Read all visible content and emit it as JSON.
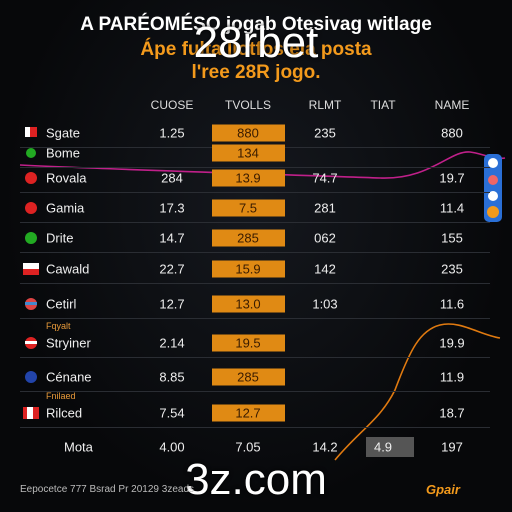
{
  "header": {
    "line1": "A PARÉOMÉSO jogab Otesivag witlage",
    "line2": "Ápe fulta    Ilotfos   ela posta",
    "line3": "l'ree 28R jogo."
  },
  "watermarks": [
    "28rbet",
    "3z.com"
  ],
  "table": {
    "columns": [
      "CUOSE",
      "TVOLLS",
      "RLMT",
      "TIAT",
      "NAME"
    ],
    "rows": [
      {
        "name": "Sgate",
        "c1": "1.25",
        "c2": "880",
        "c3": "235",
        "c5": "880"
      },
      {
        "name": "Bome",
        "c2": "134"
      },
      {
        "name": "Rovala",
        "c1": "284",
        "c2": "13.9",
        "c3": "74.7",
        "c5": "19.7"
      },
      {
        "name": "Gamia",
        "c1": "17.3",
        "c2": "7.5",
        "c3": "281",
        "c5": "11.4"
      },
      {
        "name": "Drite",
        "c1": "14.7",
        "c2": "285",
        "c3": "062",
        "c5": "155"
      },
      {
        "name": "Cawald",
        "c1": "22.7",
        "c2": "15.9",
        "c3": "142",
        "c5": "235"
      },
      {
        "name": "Cetirl",
        "c1": "12.7",
        "c2": "13.0",
        "c3": "1:03",
        "c5": "11.6"
      },
      {
        "tag": "Fqyalt",
        "name": "Stryiner",
        "c1": "2.14",
        "c2": "19.5",
        "c5": "19.9"
      },
      {
        "name": "Cénane",
        "c1": "8.85",
        "c2": "285",
        "c5": "11.9"
      },
      {
        "tag": "Fnilaed",
        "name": "Rilced",
        "c1": "7.54",
        "c2": "12.7",
        "c5": "18.7"
      }
    ],
    "total": {
      "name": "Mota",
      "c1": "4.00",
      "c2": "7.05",
      "c3": "14.2",
      "c4": "4.9",
      "c5": "197"
    }
  },
  "footer": {
    "text": "Eepocetce 777 Bsrad Pr 20129 3zeads",
    "logo": "Gpair"
  }
}
